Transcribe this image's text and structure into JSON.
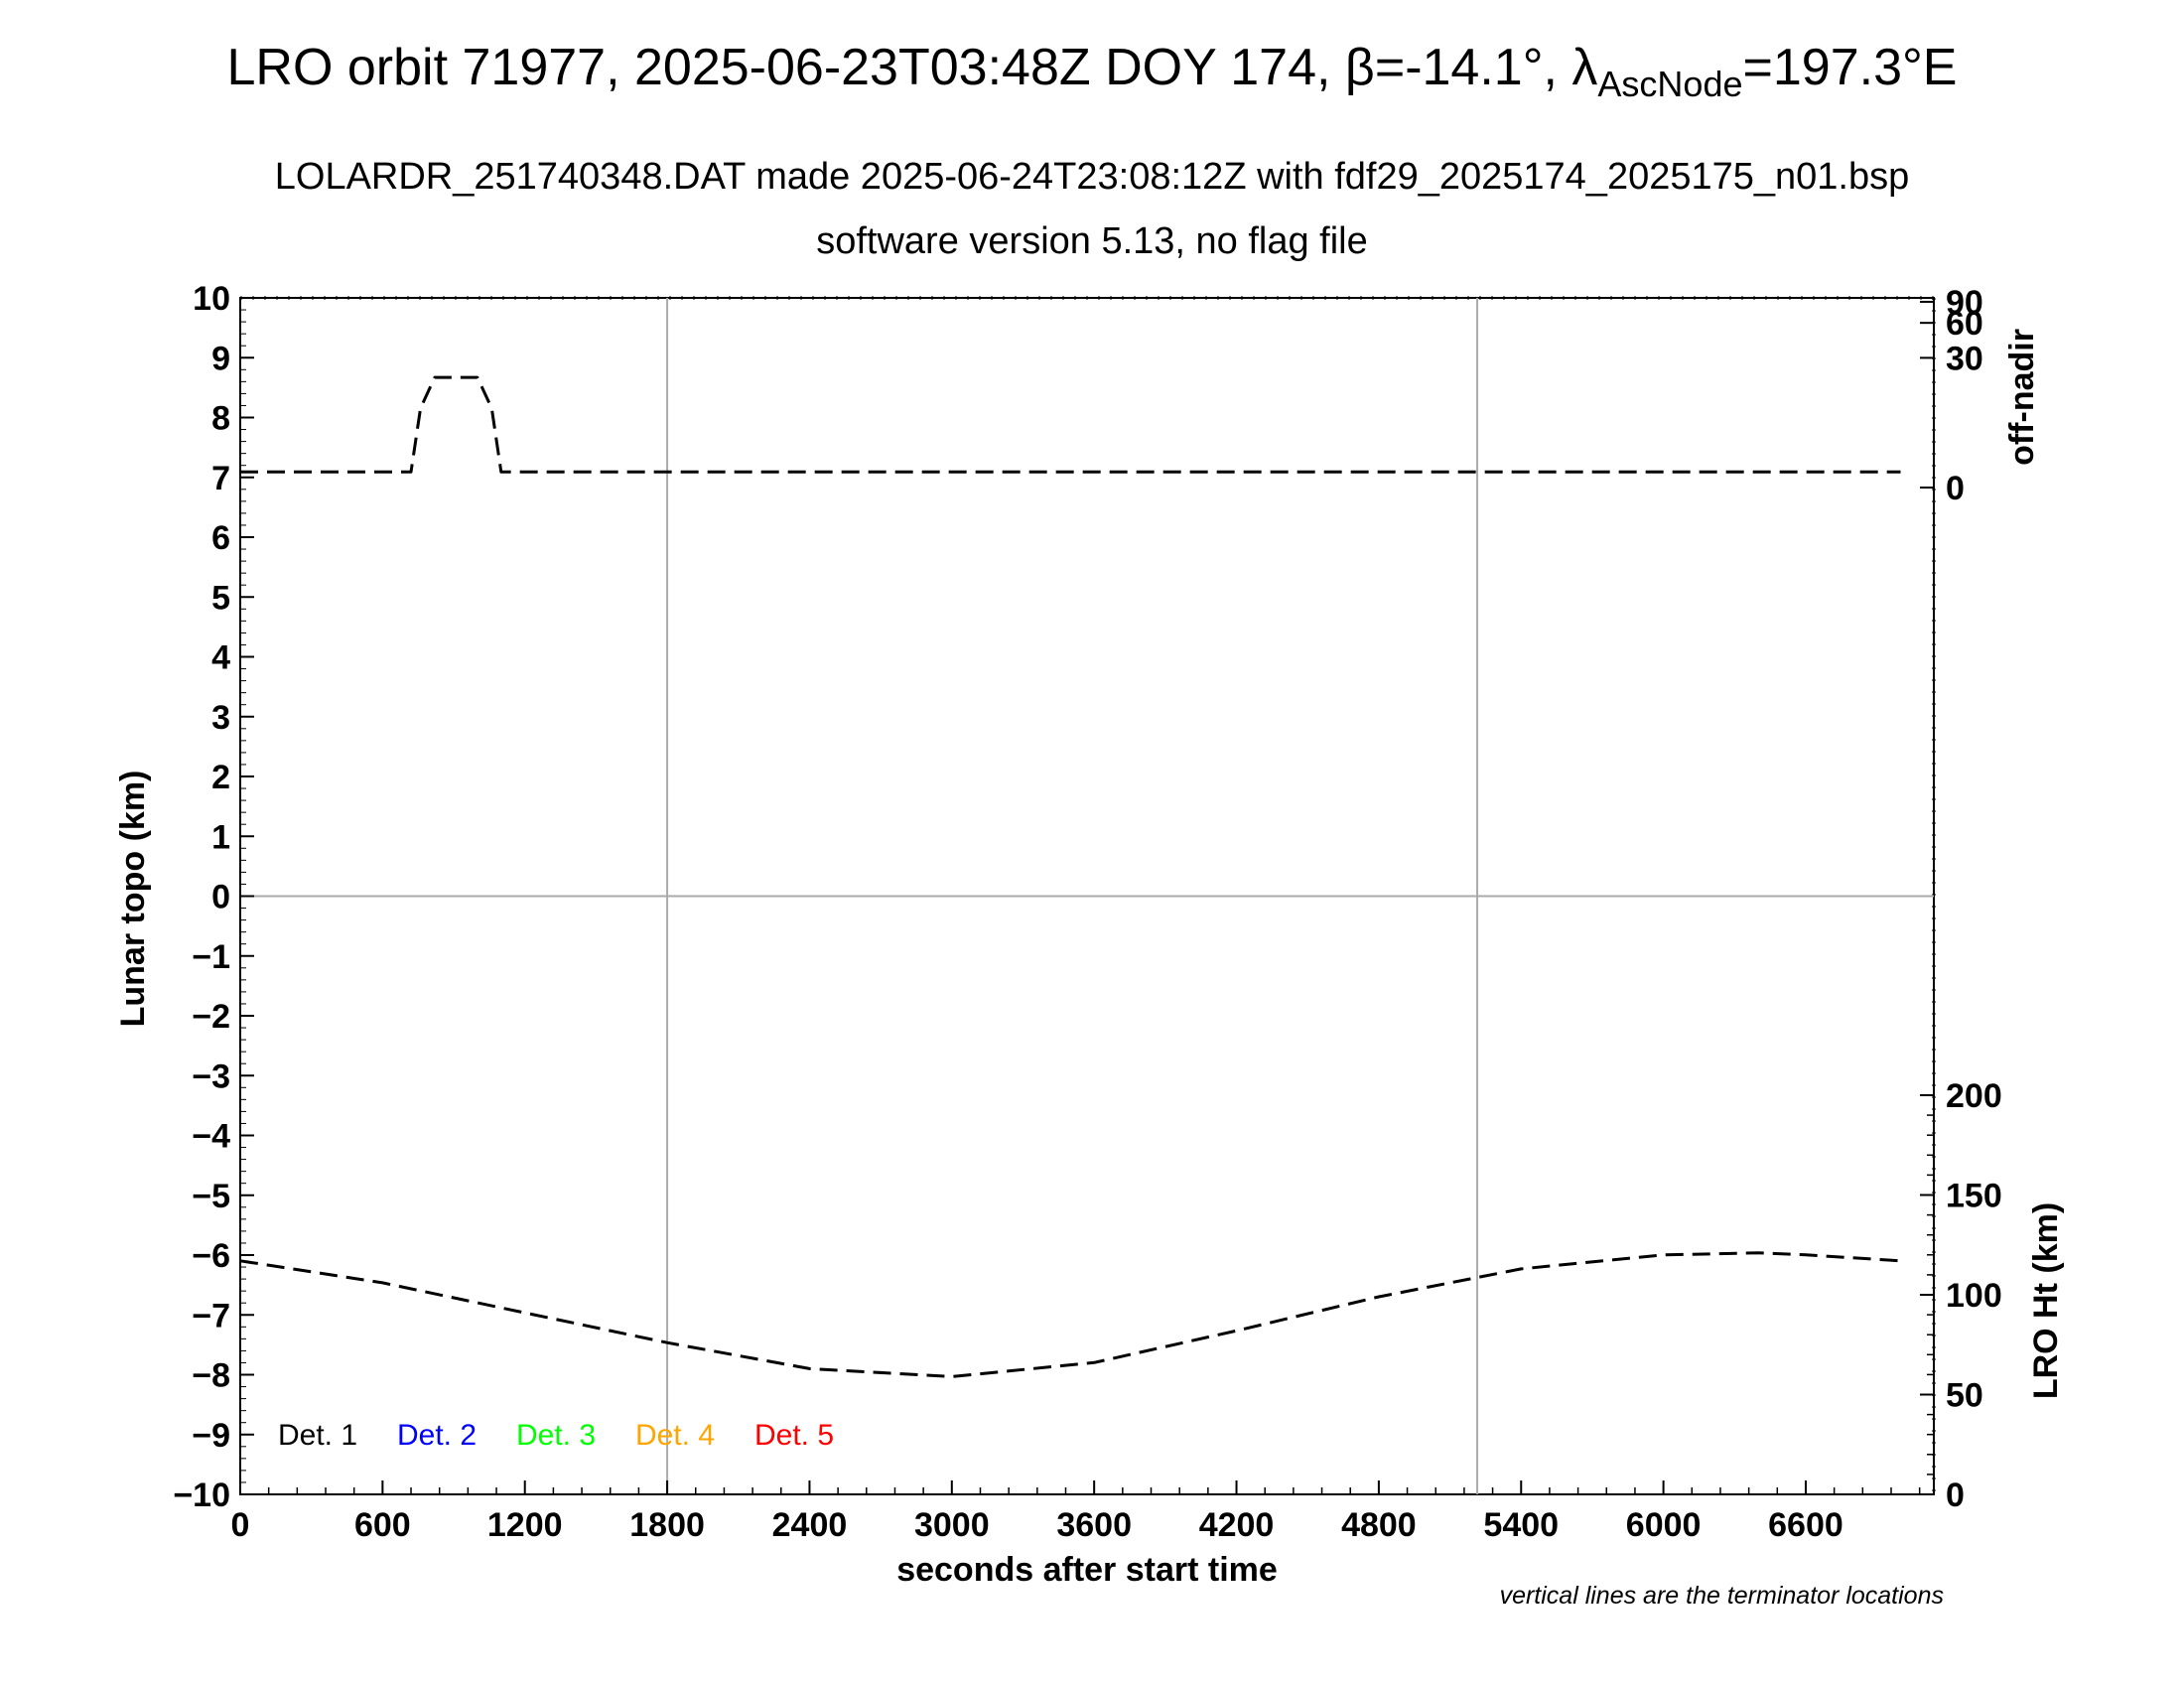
{
  "titles": {
    "title_main": "LRO orbit 71977, 2025-06-23T03:48Z DOY 174, β=-14.1°, λ",
    "title_sub": "AscNode",
    "title_end": "=197.3°E",
    "subtitle1": "LOLARDR_251740348.DAT made 2025-06-24T23:08:12Z with fdf29_2025174_2025175_n01.bsp",
    "subtitle2": "software version 5.13, no flag file",
    "note": "vertical lines are the terminator locations"
  },
  "chart_data": {
    "type": "line",
    "xlabel": "seconds after start time",
    "ylabel": "Lunar topo (km)",
    "y2label_upper": "off-nadir",
    "y2label_lower": "LRO Ht (km)",
    "xlim": [
      0,
      7140
    ],
    "ylim": [
      -10,
      10
    ],
    "x_ticks": [
      "0",
      "600",
      "1200",
      "1800",
      "2400",
      "3000",
      "3600",
      "4200",
      "4800",
      "5400",
      "6000",
      "6600"
    ],
    "y_ticks": [
      "10",
      "9",
      "8",
      "7",
      "6",
      "5",
      "4",
      "3",
      "2",
      "1",
      "0",
      "−1",
      "−2",
      "−3",
      "−4",
      "−5",
      "−6",
      "−7",
      "−8",
      "−9",
      "−10"
    ],
    "off_nadir_ticks": [
      "90",
      "60",
      "30",
      "0"
    ],
    "ht_ticks": [
      "200",
      "150",
      "100",
      "50",
      "0"
    ],
    "terminator_x": [
      1800,
      5215
    ],
    "zero_line": 0,
    "grid": false,
    "legend": {
      "placement": "bottom-left",
      "items": [
        {
          "label": "Det. 1",
          "color": "#000000"
        },
        {
          "label": "Det. 2",
          "color": "#0000ff"
        },
        {
          "label": "Det. 3",
          "color": "#00ff00"
        },
        {
          "label": "Det. 4",
          "color": "#ffa500"
        },
        {
          "label": "Det. 5",
          "color": "#ff0000"
        }
      ]
    },
    "series": [
      {
        "axis": "off-nadir (deg)",
        "style": "dashed",
        "color": "#000000",
        "x": [
          0,
          720,
          760,
          820,
          1000,
          1060,
          1100,
          2400,
          4800,
          7000
        ],
        "y": [
          1,
          1,
          10,
          20,
          20,
          10,
          1,
          1,
          1,
          1
        ]
      },
      {
        "axis": "LRO Ht (km)",
        "style": "dashed",
        "color": "#000000",
        "x": [
          0,
          600,
          1200,
          1800,
          2400,
          3000,
          3600,
          4200,
          4800,
          5400,
          6000,
          6400,
          6600,
          7000
        ],
        "y": [
          117,
          106,
          91,
          76,
          63,
          59,
          66,
          82,
          99,
          113,
          120,
          121,
          120,
          117
        ]
      }
    ]
  }
}
